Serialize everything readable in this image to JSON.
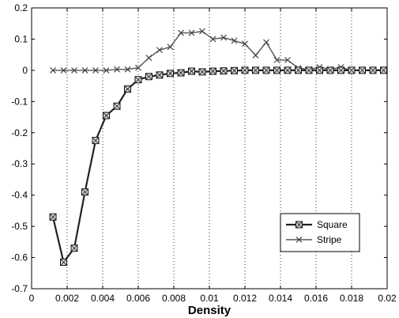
{
  "chart_data": {
    "type": "line",
    "title": "",
    "xlabel": "Density",
    "ylabel": "",
    "xlim": [
      0,
      0.02
    ],
    "ylim": [
      -0.7,
      0.2
    ],
    "xticks": [
      "0",
      "0.002",
      "0.004",
      "0.006",
      "0.008",
      "0.01",
      "0.012",
      "0.014",
      "0.016",
      "0.018",
      "0.02"
    ],
    "yticks": [
      "0.2",
      "0.1",
      "0",
      "-0.1",
      "-0.2",
      "-0.3",
      "-0.4",
      "-0.5",
      "-0.6",
      "-0.7"
    ],
    "grid": "vertical dotted",
    "legend_position": "lower-right",
    "series": [
      {
        "name": "Square",
        "marker": "square",
        "x": [
          0.0012,
          0.0018,
          0.0024,
          0.003,
          0.0036,
          0.0042,
          0.0048,
          0.0054,
          0.006,
          0.0066,
          0.0072,
          0.0078,
          0.0084,
          0.009,
          0.0096,
          0.0102,
          0.0108,
          0.0114,
          0.012,
          0.0126,
          0.0132,
          0.0138,
          0.0144,
          0.015,
          0.0156,
          0.0162,
          0.0168,
          0.0174,
          0.018,
          0.0186,
          0.0192,
          0.0198
        ],
        "y": [
          -0.47,
          -0.615,
          -0.57,
          -0.39,
          -0.225,
          -0.145,
          -0.115,
          -0.06,
          -0.03,
          -0.02,
          -0.015,
          -0.01,
          -0.008,
          -0.003,
          -0.005,
          -0.003,
          -0.002,
          -0.001,
          0,
          0,
          0,
          0,
          0,
          0,
          0,
          0,
          0,
          0,
          0,
          0,
          0,
          0
        ]
      },
      {
        "name": "Stripe",
        "marker": "x",
        "x": [
          0.0012,
          0.0018,
          0.0024,
          0.003,
          0.0036,
          0.0042,
          0.0048,
          0.0054,
          0.006,
          0.0066,
          0.0072,
          0.0078,
          0.0084,
          0.009,
          0.0096,
          0.0102,
          0.0108,
          0.0114,
          0.012,
          0.0126,
          0.0132,
          0.0138,
          0.0144,
          0.015,
          0.0156,
          0.0162,
          0.0168,
          0.0174,
          0.018,
          0.0186,
          0.0192,
          0.0198
        ],
        "y": [
          0,
          0,
          0,
          0,
          0,
          0,
          0.003,
          0.003,
          0.008,
          0.04,
          0.065,
          0.075,
          0.12,
          0.12,
          0.125,
          0.1,
          0.105,
          0.095,
          0.085,
          0.048,
          0.09,
          0.033,
          0.033,
          0.007,
          0.003,
          0.01,
          0.003,
          0.01,
          0,
          0,
          0,
          0.003
        ]
      }
    ]
  }
}
